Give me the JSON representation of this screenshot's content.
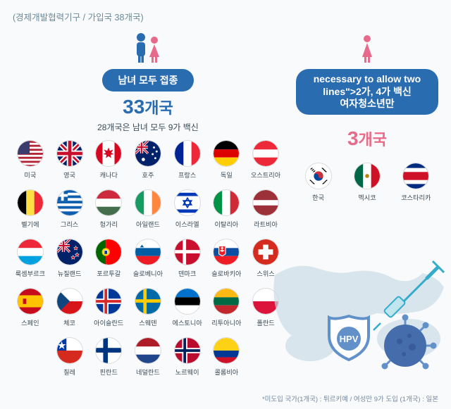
{
  "header": "(경제개발협력기구 / 가입국 38개국)",
  "left": {
    "people": {
      "male_color": "#2a6cb0",
      "female_color": "#e86a8a"
    },
    "pill_label": "남녀 모두 접종",
    "pill_bg": "#2a6cb0",
    "count_num": "33",
    "count_suffix": "개국",
    "count_color": "#2a6cb0",
    "sub_desc": "28개국은 남녀 모두 9가 백신",
    "flags": [
      {
        "name": "미국",
        "svg": "us"
      },
      {
        "name": "영국",
        "svg": "uk"
      },
      {
        "name": "캐나다",
        "svg": "ca"
      },
      {
        "name": "호주",
        "svg": "au"
      },
      {
        "name": "프랑스",
        "svg": "fr"
      },
      {
        "name": "독일",
        "svg": "de"
      },
      {
        "name": "오스트리아",
        "svg": "at"
      },
      {
        "name": "벨기에",
        "svg": "be"
      },
      {
        "name": "그리스",
        "svg": "gr"
      },
      {
        "name": "헝가리",
        "svg": "hu"
      },
      {
        "name": "아일랜드",
        "svg": "ie"
      },
      {
        "name": "이스라엘",
        "svg": "il"
      },
      {
        "name": "이탈리아",
        "svg": "it"
      },
      {
        "name": "라트비아",
        "svg": "lv"
      },
      {
        "name": "룩셈부르크",
        "svg": "lu"
      },
      {
        "name": "뉴질랜드",
        "svg": "nz"
      },
      {
        "name": "포르투갈",
        "svg": "pt"
      },
      {
        "name": "슬로베니아",
        "svg": "si"
      },
      {
        "name": "덴마크",
        "svg": "dk"
      },
      {
        "name": "슬로바키아",
        "svg": "sk"
      },
      {
        "name": "스위스",
        "svg": "ch"
      },
      {
        "name": "스페인",
        "svg": "es"
      },
      {
        "name": "체코",
        "svg": "cz"
      },
      {
        "name": "아이슬란드",
        "svg": "is"
      },
      {
        "name": "스웨덴",
        "svg": "se"
      },
      {
        "name": "에스토니아",
        "svg": "ee"
      },
      {
        "name": "리투아니아",
        "svg": "lt"
      },
      {
        "name": "폴란드",
        "svg": "pl"
      },
      {
        "name": "칠레",
        "svg": "cl"
      },
      {
        "name": "핀란드",
        "svg": "fi"
      },
      {
        "name": "네덜란드",
        "svg": "nl"
      },
      {
        "name": "노르웨이",
        "svg": "no"
      },
      {
        "name": "콜롬비아",
        "svg": "co"
      }
    ]
  },
  "right": {
    "people_color": "#e86a8a",
    "pill_line1": "2가, 4가 백신",
    "pill_line2": "여자청소년만",
    "pill_bg": "#2a6cb0",
    "count_num": "3",
    "count_suffix": "개국",
    "count_color": "#e86a8a",
    "flags": [
      {
        "name": "한국",
        "svg": "kr"
      },
      {
        "name": "멕시코",
        "svg": "mx"
      },
      {
        "name": "코스타리카",
        "svg": "cr"
      }
    ]
  },
  "hpv_badge": {
    "label": "HPV",
    "shield_color": "#5a8cc7",
    "virus_color": "#3c66a8",
    "syringe_color": "#2aa7c9"
  },
  "map_color": "#c8dae6",
  "footnote": "*미도입 국가(1개국) : 튀르키예 / 여성만 9가 도입 (1개국) : 일본"
}
